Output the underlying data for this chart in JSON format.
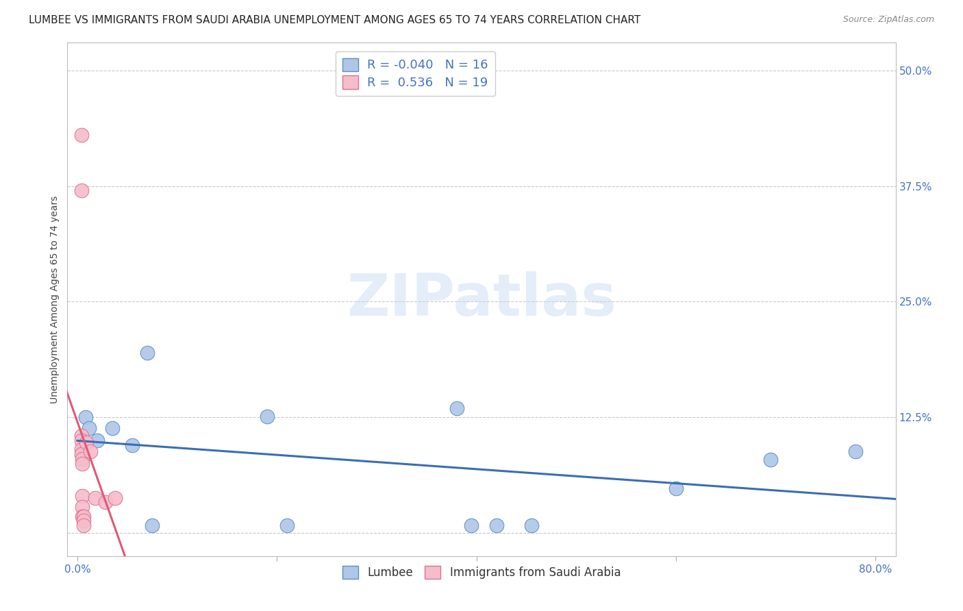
{
  "title": "LUMBEE VS IMMIGRANTS FROM SAUDI ARABIA UNEMPLOYMENT AMONG AGES 65 TO 74 YEARS CORRELATION CHART",
  "source": "Source: ZipAtlas.com",
  "ylabel": "Unemployment Among Ages 65 to 74 years",
  "xlim": [
    -0.01,
    0.82
  ],
  "ylim": [
    -0.025,
    0.53
  ],
  "xtick_positions": [
    0.0,
    0.2,
    0.4,
    0.6,
    0.8
  ],
  "xtick_labels": [
    "0.0%",
    "",
    "",
    "",
    "80.0%"
  ],
  "ytick_positions": [
    0.0,
    0.125,
    0.25,
    0.375,
    0.5
  ],
  "ytick_labels": [
    "",
    "12.5%",
    "25.0%",
    "37.5%",
    "50.0%"
  ],
  "watermark": "ZIPatlas",
  "lumbee_color": "#aec6e8",
  "saudi_color": "#f5bccb",
  "lumbee_edge": "#5b8ec4",
  "saudi_edge": "#e07090",
  "trend_lumbee_color": "#3a6db5",
  "trend_saudi_color": "#e05878",
  "tick_color": "#4472c4",
  "R_lumbee": -0.04,
  "N_lumbee": 16,
  "R_saudi": 0.536,
  "N_saudi": 19,
  "lumbee_x": [
    0.008,
    0.012,
    0.02,
    0.035,
    0.055,
    0.07,
    0.075,
    0.19,
    0.21,
    0.38,
    0.395,
    0.42,
    0.455,
    0.6,
    0.695,
    0.78
  ],
  "lumbee_y": [
    0.125,
    0.113,
    0.1,
    0.113,
    0.095,
    0.195,
    0.008,
    0.126,
    0.008,
    0.135,
    0.008,
    0.008,
    0.008,
    0.048,
    0.079,
    0.088
  ],
  "saudi_x": [
    0.004,
    0.004,
    0.004,
    0.004,
    0.004,
    0.004,
    0.005,
    0.005,
    0.005,
    0.005,
    0.005,
    0.006,
    0.006,
    0.006,
    0.009,
    0.013,
    0.018,
    0.028,
    0.038
  ],
  "saudi_y": [
    0.43,
    0.37,
    0.105,
    0.1,
    0.09,
    0.085,
    0.08,
    0.075,
    0.04,
    0.028,
    0.018,
    0.018,
    0.013,
    0.008,
    0.098,
    0.088,
    0.038,
    0.033,
    0.038
  ],
  "grid_color": "#c8c8c8",
  "bg_color": "#ffffff",
  "title_fontsize": 11,
  "axis_label_fontsize": 10,
  "tick_fontsize": 11,
  "legend_fontsize": 12,
  "marker_size": 220
}
